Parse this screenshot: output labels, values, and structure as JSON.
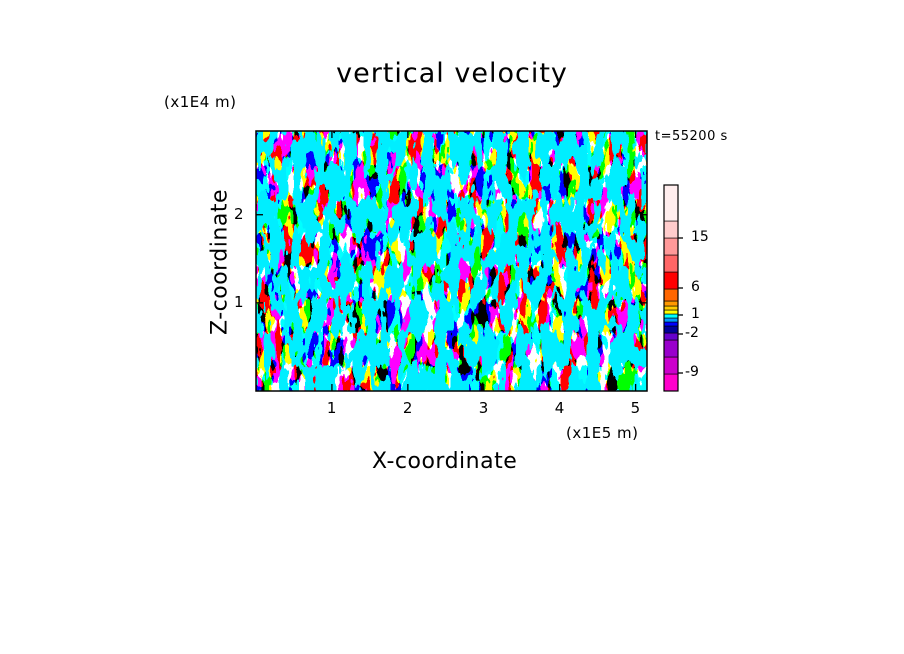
{
  "chart_data": {
    "type": "heatmap",
    "title": "vertical velocity",
    "xlabel": "X-coordinate",
    "ylabel": "Z-coordinate",
    "x_unit": "(x1E5 m)",
    "y_unit": "(x1E4 m)",
    "time_label": "t=55200 s",
    "xlim": [
      0,
      5.15
    ],
    "ylim": [
      0,
      2.95
    ],
    "x_ticks": [
      1,
      2,
      3,
      4,
      5
    ],
    "x_tick_labels": [
      "1",
      "2",
      "3",
      "4",
      "5"
    ],
    "y_ticks": [
      1,
      2
    ],
    "y_tick_labels": [
      "1",
      "2"
    ],
    "field_values": [
      "negative (cyan, ~-2 to 0)",
      "positive (yellow, ~0 to 1)"
    ],
    "colorbar": {
      "colors_bottom_to_top": [
        "#ff00cc",
        "#cc00cc",
        "#9900cc",
        "#6600cc",
        "#000099",
        "#0000ff",
        "#0099ff",
        "#00ffff",
        "#ffff00",
        "#ffcc00",
        "#ff9900",
        "#ff6600",
        "#ff0000",
        "#ff6666",
        "#ff9999",
        "#ffcccc",
        "#ffeeee"
      ],
      "tick_values": [
        -9,
        -2,
        1,
        6,
        15
      ],
      "tick_labels": [
        "-9",
        "-2",
        "1",
        "6",
        "15"
      ]
    },
    "colors": {
      "positive": "#ffff00",
      "negative": "#00eeff"
    }
  }
}
